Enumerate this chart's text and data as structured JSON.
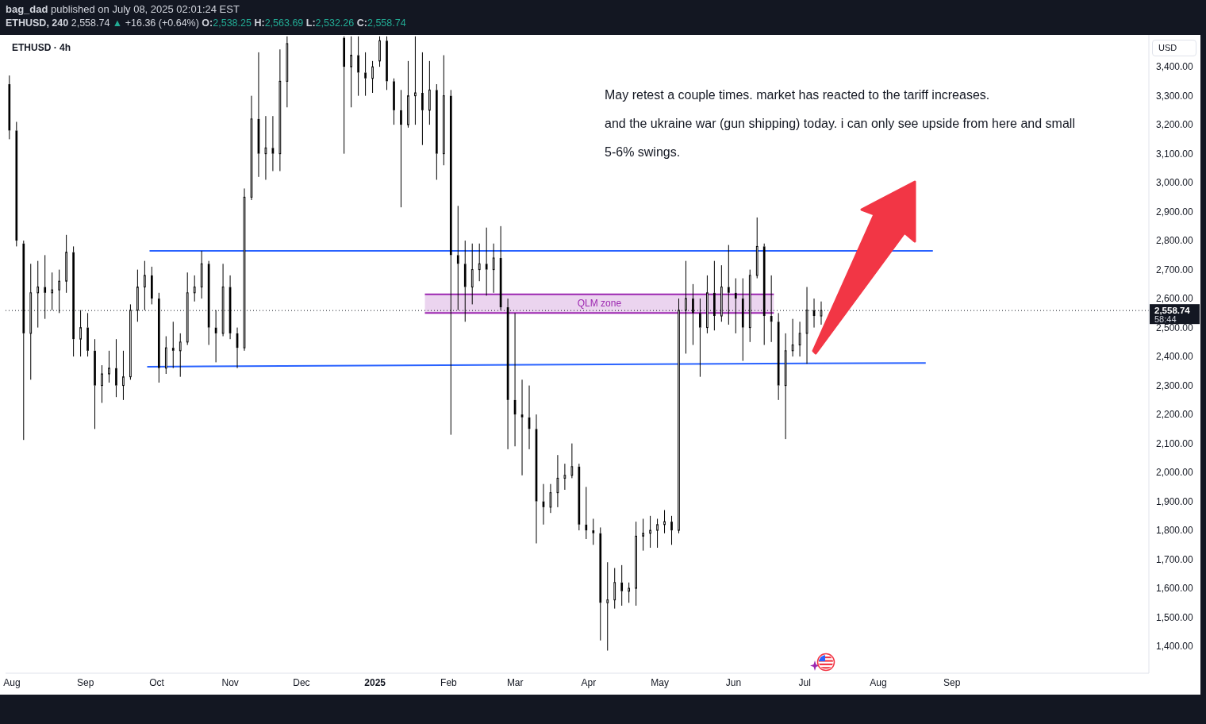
{
  "chart_data": {
    "type": "candlestick",
    "title": "ETHUSD · 4h",
    "subtitle": "ETHUSD, 240 2,558.74 ▲ +16.36 (+0.64%) O:2,538.25 H:2,563.69 L:2,532.26 C:2,558.74",
    "ylabel": "USD",
    "annotations": [
      "bag_dad published on July 08, 2025 02:01:24 EST",
      "May retest a couple times. market has reacted to the tariff increases.",
      "and the ukraine war (gun shipping) today. i can only see upside from here and small",
      "5-6% swings.",
      "58:44"
    ],
    "color": "#000000",
    "x": [
      "2024-07-31",
      "2024-08-03",
      "2024-08-06",
      "2024-08-09",
      "2024-08-12",
      "2024-08-15",
      "2024-08-18",
      "2024-08-21",
      "2024-08-24",
      "2024-08-27",
      "2024-08-30",
      "2024-09-02",
      "2024-09-05",
      "2024-09-08",
      "2024-09-11",
      "2024-09-14",
      "2024-09-17",
      "2024-09-20",
      "2024-09-23",
      "2024-09-26",
      "2024-09-29",
      "2024-10-02",
      "2024-10-05",
      "2024-10-08",
      "2024-10-11",
      "2024-10-14",
      "2024-10-17",
      "2024-10-20",
      "2024-10-23",
      "2024-10-26",
      "2024-10-29",
      "2024-11-01",
      "2024-11-04",
      "2024-11-07",
      "2024-11-10",
      "2024-11-13",
      "2024-11-16",
      "2024-11-19",
      "2024-11-22",
      "2024-11-25",
      "2024-12-19",
      "2024-12-22",
      "2024-12-25",
      "2024-12-28",
      "2024-12-31",
      "2025-01-03",
      "2025-01-06",
      "2025-01-09",
      "2025-01-12",
      "2025-01-15",
      "2025-01-18",
      "2025-01-21",
      "2025-01-24",
      "2025-01-27",
      "2025-01-30",
      "2025-02-02",
      "2025-02-05",
      "2025-02-08",
      "2025-02-11",
      "2025-02-14",
      "2025-02-17",
      "2025-02-20",
      "2025-02-23",
      "2025-02-26",
      "2025-03-01",
      "2025-03-04",
      "2025-03-07",
      "2025-03-10",
      "2025-03-13",
      "2025-03-16",
      "2025-03-19",
      "2025-03-22",
      "2025-03-25",
      "2025-03-28",
      "2025-03-31",
      "2025-04-03",
      "2025-04-06",
      "2025-04-09",
      "2025-04-12",
      "2025-04-15",
      "2025-04-18",
      "2025-04-21",
      "2025-04-24",
      "2025-04-27",
      "2025-04-30",
      "2025-05-03",
      "2025-05-06",
      "2025-05-09",
      "2025-05-12",
      "2025-05-15",
      "2025-05-18",
      "2025-05-21",
      "2025-05-24",
      "2025-05-27",
      "2025-05-30",
      "2025-06-02",
      "2025-06-05",
      "2025-06-08",
      "2025-06-11",
      "2025-06-14",
      "2025-06-17",
      "2025-06-20",
      "2025-06-23",
      "2025-06-26",
      "2025-06-29",
      "2025-07-02",
      "2025-07-05",
      "2025-07-08"
    ],
    "ohlc": [
      [
        3340,
        3370,
        3150,
        3180
      ],
      [
        3180,
        3210,
        2780,
        2800
      ],
      [
        2790,
        2800,
        2112,
        2480
      ],
      [
        2480,
        2720,
        2320,
        2620
      ],
      [
        2620,
        2730,
        2500,
        2640
      ],
      [
        2640,
        2750,
        2530,
        2620
      ],
      [
        2620,
        2690,
        2560,
        2630
      ],
      [
        2630,
        2700,
        2550,
        2660
      ],
      [
        2660,
        2820,
        2620,
        2760
      ],
      [
        2760,
        2780,
        2400,
        2460
      ],
      [
        2460,
        2560,
        2400,
        2500
      ],
      [
        2500,
        2550,
        2400,
        2420
      ],
      [
        2420,
        2460,
        2150,
        2300
      ],
      [
        2300,
        2370,
        2240,
        2340
      ],
      [
        2340,
        2420,
        2310,
        2360
      ],
      [
        2360,
        2460,
        2260,
        2300
      ],
      [
        2300,
        2420,
        2250,
        2330
      ],
      [
        2330,
        2580,
        2320,
        2560
      ],
      [
        2560,
        2700,
        2520,
        2640
      ],
      [
        2640,
        2730,
        2560,
        2680
      ],
      [
        2680,
        2710,
        2580,
        2600
      ],
      [
        2600,
        2620,
        2310,
        2360
      ],
      [
        2360,
        2470,
        2340,
        2430
      ],
      [
        2430,
        2520,
        2360,
        2420
      ],
      [
        2420,
        2480,
        2330,
        2450
      ],
      [
        2450,
        2690,
        2440,
        2620
      ],
      [
        2620,
        2680,
        2590,
        2640
      ],
      [
        2640,
        2765,
        2600,
        2720
      ],
      [
        2720,
        2730,
        2440,
        2500
      ],
      [
        2500,
        2560,
        2380,
        2480
      ],
      [
        2480,
        2720,
        2470,
        2640
      ],
      [
        2640,
        2680,
        2460,
        2480
      ],
      [
        2480,
        2500,
        2360,
        2430
      ],
      [
        2430,
        2980,
        2420,
        2950
      ],
      [
        2950,
        3300,
        2940,
        3220
      ],
      [
        3220,
        3450,
        3020,
        3100
      ],
      [
        3100,
        3230,
        3010,
        3120
      ],
      [
        3120,
        3230,
        3040,
        3100
      ],
      [
        3100,
        3460,
        3040,
        3350
      ],
      [
        3350,
        3505,
        3260,
        3480
      ],
      [
        3500,
        3505,
        3100,
        3400
      ],
      [
        3400,
        3505,
        3260,
        3440
      ],
      [
        3440,
        3505,
        3300,
        3380
      ],
      [
        3380,
        3450,
        3300,
        3360
      ],
      [
        3360,
        3420,
        3310,
        3400
      ],
      [
        3420,
        3505,
        3400,
        3490
      ],
      [
        3490,
        3505,
        3320,
        3350
      ],
      [
        3350,
        3360,
        3200,
        3250
      ],
      [
        3250,
        3320,
        2915,
        3200
      ],
      [
        3200,
        3420,
        3190,
        3300
      ],
      [
        3300,
        3505,
        3200,
        3310
      ],
      [
        3310,
        3450,
        3130,
        3250
      ],
      [
        3250,
        3420,
        3200,
        3320
      ],
      [
        3320,
        3340,
        3010,
        3100
      ],
      [
        3100,
        3440,
        3060,
        3300
      ],
      [
        3300,
        3320,
        2130,
        2750
      ],
      [
        2750,
        2920,
        2560,
        2720
      ],
      [
        2720,
        2800,
        2520,
        2640
      ],
      [
        2640,
        2790,
        2580,
        2700
      ],
      [
        2700,
        2790,
        2660,
        2720
      ],
      [
        2720,
        2845,
        2610,
        2700
      ],
      [
        2700,
        2790,
        2620,
        2740
      ],
      [
        2740,
        2850,
        2560,
        2570
      ],
      [
        2570,
        2600,
        2080,
        2250
      ],
      [
        2250,
        2550,
        2090,
        2200
      ],
      [
        2200,
        2320,
        1990,
        2190
      ],
      [
        2190,
        2300,
        2080,
        2150
      ],
      [
        2150,
        2200,
        1755,
        1900
      ],
      [
        1900,
        1960,
        1820,
        1880
      ],
      [
        1880,
        1960,
        1860,
        1930
      ],
      [
        1930,
        2060,
        1880,
        1980
      ],
      [
        1980,
        2030,
        1940,
        1990
      ],
      [
        1990,
        2100,
        1980,
        2020
      ],
      [
        2020,
        2030,
        1800,
        1820
      ],
      [
        1820,
        1950,
        1770,
        1800
      ],
      [
        1800,
        1840,
        1750,
        1790
      ],
      [
        1790,
        1810,
        1420,
        1550
      ],
      [
        1550,
        1690,
        1385,
        1560
      ],
      [
        1560,
        1670,
        1530,
        1620
      ],
      [
        1620,
        1680,
        1540,
        1590
      ],
      [
        1590,
        1620,
        1550,
        1600
      ],
      [
        1600,
        1830,
        1540,
        1780
      ],
      [
        1780,
        1840,
        1730,
        1790
      ],
      [
        1790,
        1850,
        1740,
        1800
      ],
      [
        1800,
        1840,
        1740,
        1820
      ],
      [
        1820,
        1870,
        1790,
        1830
      ],
      [
        1830,
        1850,
        1750,
        1800
      ],
      [
        1800,
        2600,
        1790,
        2560
      ],
      [
        2560,
        2730,
        2410,
        2600
      ],
      [
        2600,
        2650,
        2440,
        2550
      ],
      [
        2550,
        2600,
        2330,
        2500
      ],
      [
        2500,
        2680,
        2480,
        2620
      ],
      [
        2620,
        2730,
        2490,
        2540
      ],
      [
        2540,
        2715,
        2520,
        2640
      ],
      [
        2640,
        2785,
        2510,
        2620
      ],
      [
        2620,
        2670,
        2480,
        2600
      ],
      [
        2600,
        2670,
        2385,
        2500
      ],
      [
        2500,
        2700,
        2450,
        2680
      ],
      [
        2680,
        2880,
        2670,
        2780
      ],
      [
        2780,
        2790,
        2440,
        2540
      ],
      [
        2540,
        2680,
        2450,
        2520
      ],
      [
        2520,
        2550,
        2250,
        2300
      ],
      [
        2300,
        2480,
        2115,
        2420
      ],
      [
        2420,
        2530,
        2400,
        2440
      ],
      [
        2440,
        2520,
        2400,
        2480
      ],
      [
        2480,
        2640,
        2375,
        2560
      ],
      [
        2560,
        2600,
        2500,
        2540
      ],
      [
        2540,
        2590,
        2510,
        2558.74
      ]
    ],
    "series": [
      {
        "type": "line",
        "name": "QLM zone",
        "x": [
          "2025-01-22",
          "2025-06-18"
        ],
        "values": [
          2615,
          2615
        ],
        "lower": [
          2550,
          2550
        ],
        "upper": [
          2615,
          2615
        ],
        "color": "#9c27b0"
      },
      {
        "type": "line",
        "x": [
          "2025-01-22",
          "2025-06-18"
        ],
        "values": [
          2550,
          2550
        ],
        "color": "#9c27b0"
      },
      {
        "type": "line",
        "x": [
          "2024-09-28",
          "2025-08-24"
        ],
        "values": [
          2765,
          2765
        ],
        "color": "#2962ff"
      },
      {
        "type": "line",
        "x": [
          "2024-09-27",
          "2025-08-21"
        ],
        "values": [
          2365,
          2378
        ],
        "color": "#2962ff"
      }
    ],
    "ref_lines": [
      {
        "axis": "y",
        "value": 2558.74,
        "label": "2,558.74",
        "color": "#131722",
        "line_style": "dotted"
      }
    ],
    "xlim": [
      "2024-07-29T08:00",
      "2025-11-23"
    ],
    "xticks": [
      {
        "value": "2024-08-01",
        "label": "Aug"
      },
      {
        "value": "2024-09-01",
        "label": "Sep"
      },
      {
        "value": "2024-10-01",
        "label": "Oct"
      },
      {
        "value": "2024-11-01",
        "label": "Nov"
      },
      {
        "value": "2024-12-01",
        "label": "Dec"
      },
      {
        "value": "2025-01-01",
        "label": "2025"
      },
      {
        "value": "2025-02-01",
        "label": "Feb"
      },
      {
        "value": "2025-03-01",
        "label": "Mar"
      },
      {
        "value": "2025-04-01",
        "label": "Apr"
      },
      {
        "value": "2025-05-01",
        "label": "May"
      },
      {
        "value": "2025-06-01",
        "label": "Jun"
      },
      {
        "value": "2025-07-01",
        "label": "Jul"
      },
      {
        "value": "2025-08-01",
        "label": "Aug"
      },
      {
        "value": "2025-09-01",
        "label": "Sep"
      }
    ],
    "ylim": [
      1307,
      3510
    ],
    "yticks": [
      {
        "value": 1400,
        "label": "1,400.00"
      },
      {
        "value": 1500,
        "label": "1,500.00"
      },
      {
        "value": 1600,
        "label": "1,600.00"
      },
      {
        "value": 1700,
        "label": "1,700.00"
      },
      {
        "value": 1800,
        "label": "1,800.00"
      },
      {
        "value": 1900,
        "label": "1,900.00"
      },
      {
        "value": 2000,
        "label": "2,000.00"
      },
      {
        "value": 2100,
        "label": "2,100.00"
      },
      {
        "value": 2200,
        "label": "2,200.00"
      },
      {
        "value": 2300,
        "label": "2,300.00"
      },
      {
        "value": 2400,
        "label": "2,400.00"
      },
      {
        "value": 2500,
        "label": "2,500.00"
      },
      {
        "value": 2600,
        "label": "2,600.00"
      },
      {
        "value": 2700,
        "label": "2,700.00"
      },
      {
        "value": 2800,
        "label": "2,800.00"
      },
      {
        "value": 2900,
        "label": "2,900.00"
      },
      {
        "value": 3000,
        "label": "3,000.00"
      },
      {
        "value": 3100,
        "label": "3,100.00"
      },
      {
        "value": 3200,
        "label": "3,200.00"
      },
      {
        "value": 3300,
        "label": "3,300.00"
      },
      {
        "value": 3400,
        "label": "3,400.00"
      }
    ]
  }
}
